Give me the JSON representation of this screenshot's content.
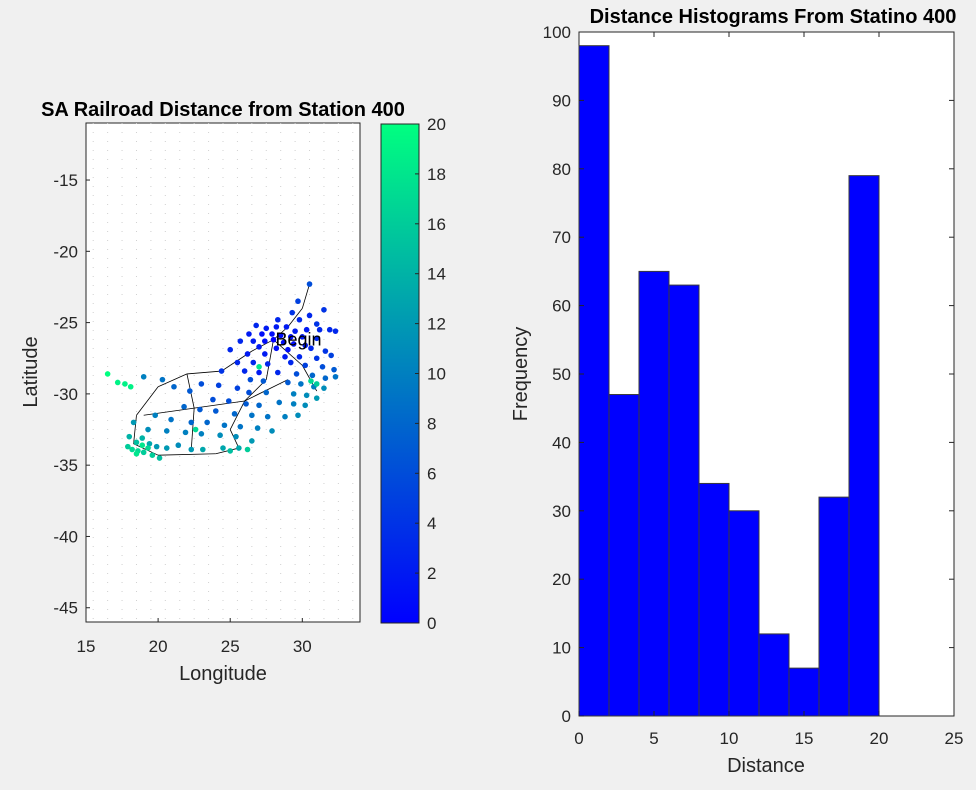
{
  "colors": {
    "background": "#f0f0f0",
    "bar": "#0000ff",
    "colormap_low": "#0000ff",
    "colormap_high": "#00ff80",
    "edge": "#000000"
  },
  "chart_data": [
    {
      "type": "scatter",
      "title": "SA Railroad Distance from Station 400",
      "xlabel": "Longitude",
      "ylabel": "Latitude",
      "xlim": [
        15,
        34
      ],
      "ylim": [
        -46,
        -11
      ],
      "xticks": [
        15,
        20,
        25,
        30
      ],
      "yticks": [
        -15,
        -20,
        -25,
        -30,
        -35,
        -40,
        -45
      ],
      "grid": "dotted",
      "annotation": "Begin",
      "annotation_point": [
        28,
        -26.2
      ],
      "colorbar": {
        "range": [
          0,
          20
        ],
        "ticks": [
          0,
          2,
          4,
          6,
          8,
          10,
          12,
          14,
          16,
          18,
          20
        ]
      },
      "points": [
        [
          30.5,
          -22.3,
          6
        ],
        [
          29.7,
          -23.5,
          5
        ],
        [
          31.5,
          -24.1,
          4
        ],
        [
          29.3,
          -24.3,
          4
        ],
        [
          30.5,
          -24.5,
          3
        ],
        [
          28.3,
          -24.8,
          3
        ],
        [
          29.8,
          -24.8,
          3
        ],
        [
          31.0,
          -25.1,
          4
        ],
        [
          26.8,
          -25.2,
          3
        ],
        [
          27.5,
          -25.4,
          2
        ],
        [
          28.2,
          -25.3,
          2
        ],
        [
          28.9,
          -25.3,
          2
        ],
        [
          29.5,
          -25.6,
          2
        ],
        [
          30.3,
          -25.5,
          2
        ],
        [
          31.2,
          -25.5,
          3
        ],
        [
          31.9,
          -25.5,
          3
        ],
        [
          32.3,
          -25.6,
          3
        ],
        [
          26.3,
          -25.8,
          2
        ],
        [
          27.2,
          -25.8,
          1
        ],
        [
          27.9,
          -25.8,
          1
        ],
        [
          28.5,
          -25.9,
          1
        ],
        [
          29.2,
          -26.0,
          1
        ],
        [
          30.0,
          -26.0,
          2
        ],
        [
          31.0,
          -26.1,
          3
        ],
        [
          25.7,
          -26.3,
          3
        ],
        [
          26.6,
          -26.3,
          2
        ],
        [
          27.4,
          -26.3,
          1
        ],
        [
          28.0,
          -26.2,
          0
        ],
        [
          28.7,
          -26.4,
          1
        ],
        [
          29.4,
          -26.5,
          1
        ],
        [
          30.2,
          -26.6,
          2
        ],
        [
          27.0,
          -26.7,
          2
        ],
        [
          28.2,
          -26.8,
          1
        ],
        [
          29.0,
          -26.9,
          1
        ],
        [
          30.6,
          -26.8,
          3
        ],
        [
          31.6,
          -27.0,
          4
        ],
        [
          25.0,
          -26.9,
          3
        ],
        [
          26.2,
          -27.2,
          2
        ],
        [
          27.4,
          -27.2,
          2
        ],
        [
          28.8,
          -27.4,
          2
        ],
        [
          29.8,
          -27.4,
          3
        ],
        [
          31.0,
          -27.5,
          4
        ],
        [
          32.0,
          -27.3,
          5
        ],
        [
          25.5,
          -27.8,
          3
        ],
        [
          26.6,
          -27.8,
          3
        ],
        [
          27.6,
          -27.9,
          3
        ],
        [
          29.2,
          -27.8,
          3
        ],
        [
          30.2,
          -28.0,
          5
        ],
        [
          31.4,
          -28.1,
          6
        ],
        [
          32.2,
          -28.3,
          7
        ],
        [
          24.4,
          -28.4,
          4
        ],
        [
          26.0,
          -28.4,
          3
        ],
        [
          27.0,
          -28.5,
          2
        ],
        [
          28.3,
          -28.5,
          3
        ],
        [
          29.6,
          -28.6,
          6
        ],
        [
          30.7,
          -28.7,
          8
        ],
        [
          31.6,
          -28.9,
          8
        ],
        [
          32.3,
          -28.8,
          9
        ],
        [
          26.4,
          -29.0,
          6
        ],
        [
          27.3,
          -29.1,
          7
        ],
        [
          29.0,
          -29.2,
          7
        ],
        [
          29.9,
          -29.3,
          9
        ],
        [
          30.8,
          -29.5,
          10
        ],
        [
          31.5,
          -29.6,
          11
        ],
        [
          23.0,
          -29.3,
          6
        ],
        [
          24.2,
          -29.4,
          5
        ],
        [
          25.5,
          -29.6,
          5
        ],
        [
          26.3,
          -29.9,
          6
        ],
        [
          27.5,
          -29.9,
          8
        ],
        [
          29.4,
          -30.0,
          10
        ],
        [
          30.3,
          -30.1,
          11
        ],
        [
          31.0,
          -30.3,
          12
        ],
        [
          22.2,
          -29.8,
          7
        ],
        [
          21.1,
          -29.5,
          8
        ],
        [
          20.3,
          -29.0,
          9
        ],
        [
          19.0,
          -28.8,
          10
        ],
        [
          23.8,
          -30.4,
          6
        ],
        [
          24.9,
          -30.5,
          6
        ],
        [
          26.1,
          -30.7,
          7
        ],
        [
          27.0,
          -30.8,
          8
        ],
        [
          28.4,
          -30.6,
          9
        ],
        [
          29.4,
          -30.7,
          10
        ],
        [
          30.2,
          -30.8,
          11
        ],
        [
          21.8,
          -30.9,
          8
        ],
        [
          22.9,
          -31.1,
          7
        ],
        [
          24.0,
          -31.2,
          7
        ],
        [
          25.3,
          -31.4,
          8
        ],
        [
          26.5,
          -31.5,
          9
        ],
        [
          27.6,
          -31.6,
          9
        ],
        [
          28.8,
          -31.6,
          10
        ],
        [
          29.7,
          -31.5,
          11
        ],
        [
          19.8,
          -31.5,
          10
        ],
        [
          20.9,
          -31.8,
          9
        ],
        [
          22.3,
          -32.0,
          8
        ],
        [
          23.4,
          -32.0,
          8
        ],
        [
          24.6,
          -32.2,
          9
        ],
        [
          25.7,
          -32.3,
          9
        ],
        [
          26.9,
          -32.4,
          10
        ],
        [
          27.9,
          -32.6,
          11
        ],
        [
          18.3,
          -32.0,
          12
        ],
        [
          19.3,
          -32.5,
          11
        ],
        [
          20.6,
          -32.6,
          10
        ],
        [
          21.9,
          -32.7,
          10
        ],
        [
          23.0,
          -32.8,
          10
        ],
        [
          24.3,
          -32.9,
          11
        ],
        [
          25.4,
          -33.0,
          11
        ],
        [
          26.5,
          -33.3,
          12
        ],
        [
          18.0,
          -33.0,
          14
        ],
        [
          18.5,
          -33.4,
          15
        ],
        [
          18.9,
          -33.1,
          14
        ],
        [
          19.4,
          -33.5,
          13
        ],
        [
          19.9,
          -33.7,
          12
        ],
        [
          20.6,
          -33.8,
          12
        ],
        [
          21.4,
          -33.6,
          11
        ],
        [
          22.3,
          -33.9,
          12
        ],
        [
          23.1,
          -33.9,
          13
        ],
        [
          24.5,
          -33.8,
          13
        ],
        [
          25.6,
          -33.8,
          13
        ],
        [
          17.9,
          -33.7,
          16
        ],
        [
          18.2,
          -33.9,
          17
        ],
        [
          18.6,
          -34.0,
          17
        ],
        [
          19.0,
          -34.1,
          16
        ],
        [
          19.6,
          -34.3,
          16
        ],
        [
          20.1,
          -34.5,
          15
        ],
        [
          18.5,
          -34.2,
          18
        ],
        [
          17.2,
          -29.2,
          19
        ],
        [
          17.7,
          -29.3,
          19
        ],
        [
          18.1,
          -29.5,
          19
        ],
        [
          16.5,
          -28.6,
          20
        ],
        [
          18.9,
          -33.6,
          18
        ],
        [
          19.3,
          -33.8,
          17
        ],
        [
          27.0,
          -28.1,
          18
        ],
        [
          22.6,
          -32.5,
          17
        ],
        [
          30.6,
          -29.1,
          17
        ],
        [
          31.0,
          -29.3,
          16
        ],
        [
          25.0,
          -34.0,
          15
        ],
        [
          26.2,
          -33.9,
          16
        ]
      ],
      "edges": [
        [
          28.0,
          -26.2,
          29.0,
          -25.3
        ],
        [
          29.0,
          -25.3,
          30.0,
          -24.0
        ],
        [
          30.0,
          -24.0,
          30.5,
          -22.3
        ],
        [
          28.0,
          -26.2,
          26.5,
          -27.0
        ],
        [
          26.5,
          -27.0,
          25.0,
          -28.0
        ],
        [
          25.0,
          -28.0,
          24.4,
          -28.4
        ],
        [
          24.4,
          -28.4,
          22.0,
          -28.6
        ],
        [
          22.0,
          -28.6,
          20.0,
          -29.5
        ],
        [
          20.0,
          -29.5,
          18.5,
          -31.5
        ],
        [
          18.5,
          -31.5,
          18.3,
          -33.5
        ],
        [
          28.0,
          -26.2,
          27.5,
          -29.0
        ],
        [
          27.5,
          -29.0,
          26.0,
          -30.5
        ],
        [
          26.0,
          -30.5,
          25.0,
          -32.5
        ],
        [
          25.0,
          -32.5,
          25.6,
          -33.8
        ],
        [
          28.0,
          -26.2,
          30.0,
          -28.0
        ],
        [
          30.0,
          -28.0,
          31.0,
          -29.8
        ],
        [
          22.0,
          -28.6,
          22.5,
          -31.0
        ],
        [
          22.5,
          -31.0,
          22.3,
          -33.9
        ],
        [
          18.3,
          -33.5,
          20.0,
          -34.3
        ],
        [
          20.0,
          -34.3,
          24.0,
          -34.2
        ],
        [
          24.0,
          -34.2,
          25.6,
          -33.8
        ],
        [
          19.0,
          -31.5,
          22.5,
          -31.0
        ],
        [
          22.5,
          -31.0,
          26.0,
          -30.5
        ],
        [
          26.0,
          -30.5,
          29.0,
          -29.0
        ]
      ]
    },
    {
      "type": "bar",
      "title": "Distance Histograms From Statino 400",
      "xlabel": "Distance",
      "ylabel": "Frequency",
      "xlim": [
        0,
        25
      ],
      "ylim": [
        0,
        100
      ],
      "xticks": [
        0,
        5,
        10,
        15,
        20,
        25
      ],
      "yticks": [
        0,
        10,
        20,
        30,
        40,
        50,
        60,
        70,
        80,
        90,
        100
      ],
      "bin_edges": [
        0,
        2,
        4,
        6,
        8,
        10,
        12,
        14,
        16,
        18,
        20
      ],
      "values": [
        98,
        47,
        65,
        63,
        34,
        30,
        12,
        7,
        32,
        79
      ]
    }
  ]
}
